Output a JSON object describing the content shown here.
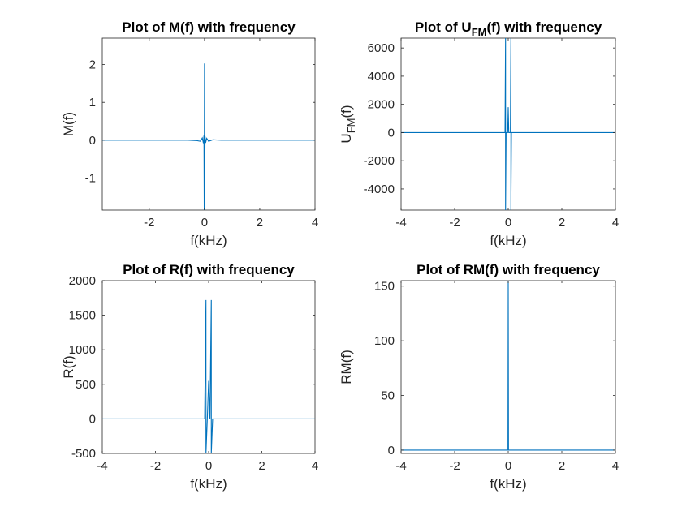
{
  "figure": {
    "background": "#ffffff",
    "line_color": "#0072bd",
    "axis_color": "#262626"
  },
  "chart_data": [
    {
      "type": "line",
      "title": "Plot of M(f) with frequency",
      "title_parts": [
        {
          "text": "Plot of M(f) with frequency",
          "sub": false
        }
      ],
      "xlabel": "f(kHz)",
      "ylabel_parts": [
        {
          "text": "M(f)",
          "sub": false
        }
      ],
      "xlim": [
        -3.7,
        4.0
      ],
      "ylim": [
        -1.85,
        2.7
      ],
      "xticks": [
        -2,
        0,
        2,
        4
      ],
      "xtick_labels": [
        "-2",
        "0",
        "2",
        "4"
      ],
      "yticks": [
        -1,
        0,
        1,
        2
      ],
      "ytick_labels": [
        "-1",
        "0",
        "1",
        "2"
      ],
      "grid": false,
      "series": [
        {
          "description": "spectrum centered at 0 with narrow peak",
          "x": [
            -3.7,
            -0.6,
            -0.3,
            -0.15,
            -0.08,
            -0.04,
            -0.02,
            -0.01,
            0,
            0.01,
            0.02,
            0.04,
            0.08,
            0.15,
            0.3,
            0.6,
            4.0
          ],
          "y": [
            0,
            0,
            -0.01,
            -0.03,
            0.06,
            -0.08,
            0.12,
            -1.85,
            2.03,
            -0.9,
            0.1,
            -0.07,
            0.05,
            -0.03,
            0.01,
            0,
            0
          ]
        }
      ]
    },
    {
      "type": "line",
      "title": "Plot of UFM(f) with frequency",
      "title_parts": [
        {
          "text": "Plot of U",
          "sub": false
        },
        {
          "text": "FM",
          "sub": true
        },
        {
          "text": "(f) with frequency",
          "sub": false
        }
      ],
      "xlabel": "f(kHz)",
      "ylabel_parts": [
        {
          "text": "U",
          "sub": false
        },
        {
          "text": "FM",
          "sub": true
        },
        {
          "text": "(f)",
          "sub": false
        }
      ],
      "xlim": [
        -4,
        4
      ],
      "ylim": [
        -5500,
        6700
      ],
      "xticks": [
        -4,
        -2,
        0,
        2,
        4
      ],
      "xtick_labels": [
        "-4",
        "-2",
        "0",
        "2",
        "4"
      ],
      "yticks": [
        -4000,
        -2000,
        0,
        2000,
        4000,
        6000
      ],
      "ytick_labels": [
        "-4000",
        "-2000",
        "0",
        "2000",
        "4000",
        "6000"
      ],
      "grid": false,
      "series": [
        {
          "description": "two large spikes near carrier frequencies",
          "x": [
            -4,
            -0.12,
            -0.1,
            -0.1,
            -0.08,
            -0.02,
            0,
            0.02,
            0.08,
            0.1,
            0.1,
            0.12,
            4
          ],
          "y": [
            0,
            0,
            6700,
            -5500,
            0,
            0,
            1800,
            0,
            0,
            6700,
            -5500,
            0,
            0
          ]
        }
      ]
    },
    {
      "type": "line",
      "title": "Plot of R(f) with frequency",
      "title_parts": [
        {
          "text": "Plot of R(f) with frequency",
          "sub": false
        }
      ],
      "xlabel": "f(kHz)",
      "ylabel_parts": [
        {
          "text": "R(f)",
          "sub": false
        }
      ],
      "xlim": [
        -4,
        4
      ],
      "ylim": [
        -500,
        2000
      ],
      "xticks": [
        -4,
        -2,
        0,
        2,
        4
      ],
      "xtick_labels": [
        "-4",
        "-2",
        "0",
        "2",
        "4"
      ],
      "yticks": [
        -500,
        0,
        500,
        1000,
        1500,
        2000
      ],
      "ytick_labels": [
        "-500",
        "0",
        "500",
        "1000",
        "1500",
        "2000"
      ],
      "grid": false,
      "series": [
        {
          "description": "two peaks symmetric about 0",
          "x": [
            -4,
            -0.15,
            -0.1,
            -0.1,
            -0.05,
            0,
            0.05,
            0.1,
            0.1,
            0.15,
            4
          ],
          "y": [
            0,
            0,
            1720,
            -500,
            0,
            550,
            0,
            1720,
            -500,
            0,
            0
          ]
        }
      ]
    },
    {
      "type": "line",
      "title": "Plot of RM(f) with frequency",
      "title_parts": [
        {
          "text": "Plot of RM(f) with frequency",
          "sub": false
        }
      ],
      "xlabel": "f(kHz)",
      "ylabel_parts": [
        {
          "text": "RM(f)",
          "sub": false
        }
      ],
      "xlim": [
        -4,
        4
      ],
      "ylim": [
        -3,
        155
      ],
      "xticks": [
        -4,
        -2,
        0,
        2,
        4
      ],
      "xtick_labels": [
        "-4",
        "-2",
        "0",
        "2",
        "4"
      ],
      "yticks": [
        0,
        50,
        100,
        150
      ],
      "ytick_labels": [
        "0",
        "50",
        "100",
        "150"
      ],
      "grid": false,
      "series": [
        {
          "description": "single spike at 0",
          "x": [
            -4,
            -0.01,
            0,
            0.01,
            4
          ],
          "y": [
            0,
            0,
            155,
            0,
            0
          ]
        }
      ]
    }
  ]
}
